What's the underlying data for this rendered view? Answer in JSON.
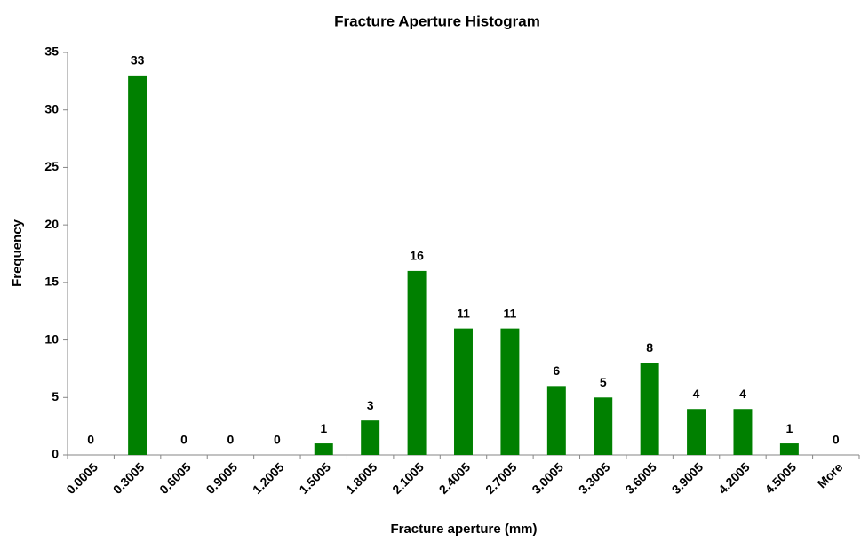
{
  "chart_data": {
    "type": "bar",
    "title": "Fracture Aperture Histogram",
    "x_label": "Fracture aperture (mm)",
    "y_label": "Frequency",
    "categories": [
      "0.0005",
      "0.3005",
      "0.6005",
      "0.9005",
      "1.2005",
      "1.5005",
      "1.8005",
      "2.1005",
      "2.4005",
      "2.7005",
      "3.0005",
      "3.3005",
      "3.6005",
      "3.9005",
      "4.2005",
      "4.5005",
      "More"
    ],
    "values": [
      0,
      33,
      0,
      0,
      0,
      1,
      3,
      16,
      11,
      11,
      6,
      5,
      8,
      4,
      4,
      1,
      0
    ],
    "color": "#008000",
    "ylim": [
      0,
      35
    ],
    "yticks": [
      0,
      5,
      10,
      15,
      20,
      25,
      30,
      35
    ],
    "grid": false,
    "data_labels": true
  }
}
